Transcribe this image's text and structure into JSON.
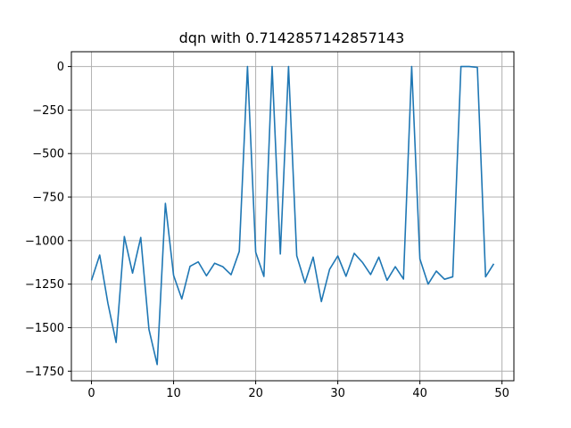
{
  "chart_data": {
    "type": "line",
    "title": "dqn with 0.7142857142857143",
    "xlabel": "",
    "ylabel": "",
    "xlim": [
      -2.45,
      51.45
    ],
    "ylim": [
      -1805,
      85
    ],
    "grid": true,
    "x_ticks": [
      0,
      10,
      20,
      30,
      40,
      50
    ],
    "y_ticks": [
      0,
      -250,
      -500,
      -750,
      -1000,
      -1250,
      -1500,
      -1750
    ],
    "x_tick_labels": [
      "0",
      "10",
      "20",
      "30",
      "40",
      "50"
    ],
    "y_tick_labels": [
      "0",
      "−250",
      "−500",
      "−750",
      "−1000",
      "−1250",
      "−1500",
      "−1750"
    ],
    "series": [
      {
        "color": "#1f77b4",
        "x": [
          0,
          1,
          2,
          3,
          4,
          5,
          6,
          7,
          8,
          9,
          10,
          11,
          12,
          13,
          14,
          15,
          16,
          17,
          18,
          19,
          20,
          21,
          22,
          23,
          24,
          25,
          26,
          27,
          28,
          29,
          30,
          31,
          32,
          33,
          34,
          35,
          36,
          37,
          38,
          39,
          40,
          41,
          42,
          43,
          44,
          45,
          46,
          47,
          48,
          49
        ],
        "values": [
          -1228,
          -1083,
          -1360,
          -1585,
          -977,
          -1187,
          -982,
          -1510,
          -1712,
          -786,
          -1200,
          -1335,
          -1148,
          -1122,
          -1202,
          -1130,
          -1150,
          -1196,
          -1062,
          0,
          -1067,
          -1206,
          0,
          -1077,
          0,
          -1087,
          -1242,
          -1095,
          -1350,
          -1165,
          -1088,
          -1205,
          -1073,
          -1125,
          -1195,
          -1095,
          -1228,
          -1150,
          -1221,
          0,
          -1105,
          -1250,
          -1175,
          -1222,
          -1208,
          0,
          0,
          -5,
          -1208,
          -1133
        ]
      }
    ]
  }
}
